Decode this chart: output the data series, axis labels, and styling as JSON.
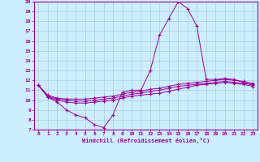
{
  "xlabel": "Windchill (Refroidissement éolien,°C)",
  "xlim": [
    -0.5,
    23.5
  ],
  "ylim": [
    7,
    20
  ],
  "xticks": [
    0,
    1,
    2,
    3,
    4,
    5,
    6,
    7,
    8,
    9,
    10,
    11,
    12,
    13,
    14,
    15,
    16,
    17,
    18,
    19,
    20,
    21,
    22,
    23
  ],
  "yticks": [
    7,
    8,
    9,
    10,
    11,
    12,
    13,
    14,
    15,
    16,
    17,
    18,
    19,
    20
  ],
  "background_color": "#cceeff",
  "line_color": "#990099",
  "grid_color": "#aaccdd",
  "line1": [
    11.5,
    10.3,
    9.8,
    9.0,
    8.5,
    8.2,
    7.5,
    7.2,
    8.5,
    10.8,
    11.0,
    11.0,
    13.0,
    16.6,
    18.3,
    20.0,
    19.3,
    17.5,
    12.1,
    12.1,
    12.2,
    12.1,
    11.8,
    11.5
  ],
  "line2": [
    11.5,
    10.3,
    10.0,
    9.8,
    9.7,
    9.7,
    9.8,
    9.9,
    10.0,
    10.2,
    10.4,
    10.5,
    10.6,
    10.7,
    10.9,
    11.1,
    11.3,
    11.5,
    11.6,
    11.7,
    11.8,
    11.7,
    11.6,
    11.4
  ],
  "line3": [
    11.5,
    10.5,
    10.2,
    10.1,
    10.1,
    10.1,
    10.2,
    10.3,
    10.4,
    10.6,
    10.8,
    10.9,
    11.1,
    11.2,
    11.4,
    11.6,
    11.7,
    11.8,
    11.9,
    12.0,
    12.1,
    12.0,
    11.9,
    11.7
  ],
  "line4": [
    11.5,
    10.4,
    10.1,
    10.0,
    9.9,
    9.9,
    10.0,
    10.1,
    10.2,
    10.4,
    10.6,
    10.7,
    10.9,
    11.0,
    11.2,
    11.4,
    11.5,
    11.6,
    11.7,
    11.8,
    11.9,
    11.8,
    11.7,
    11.6
  ]
}
